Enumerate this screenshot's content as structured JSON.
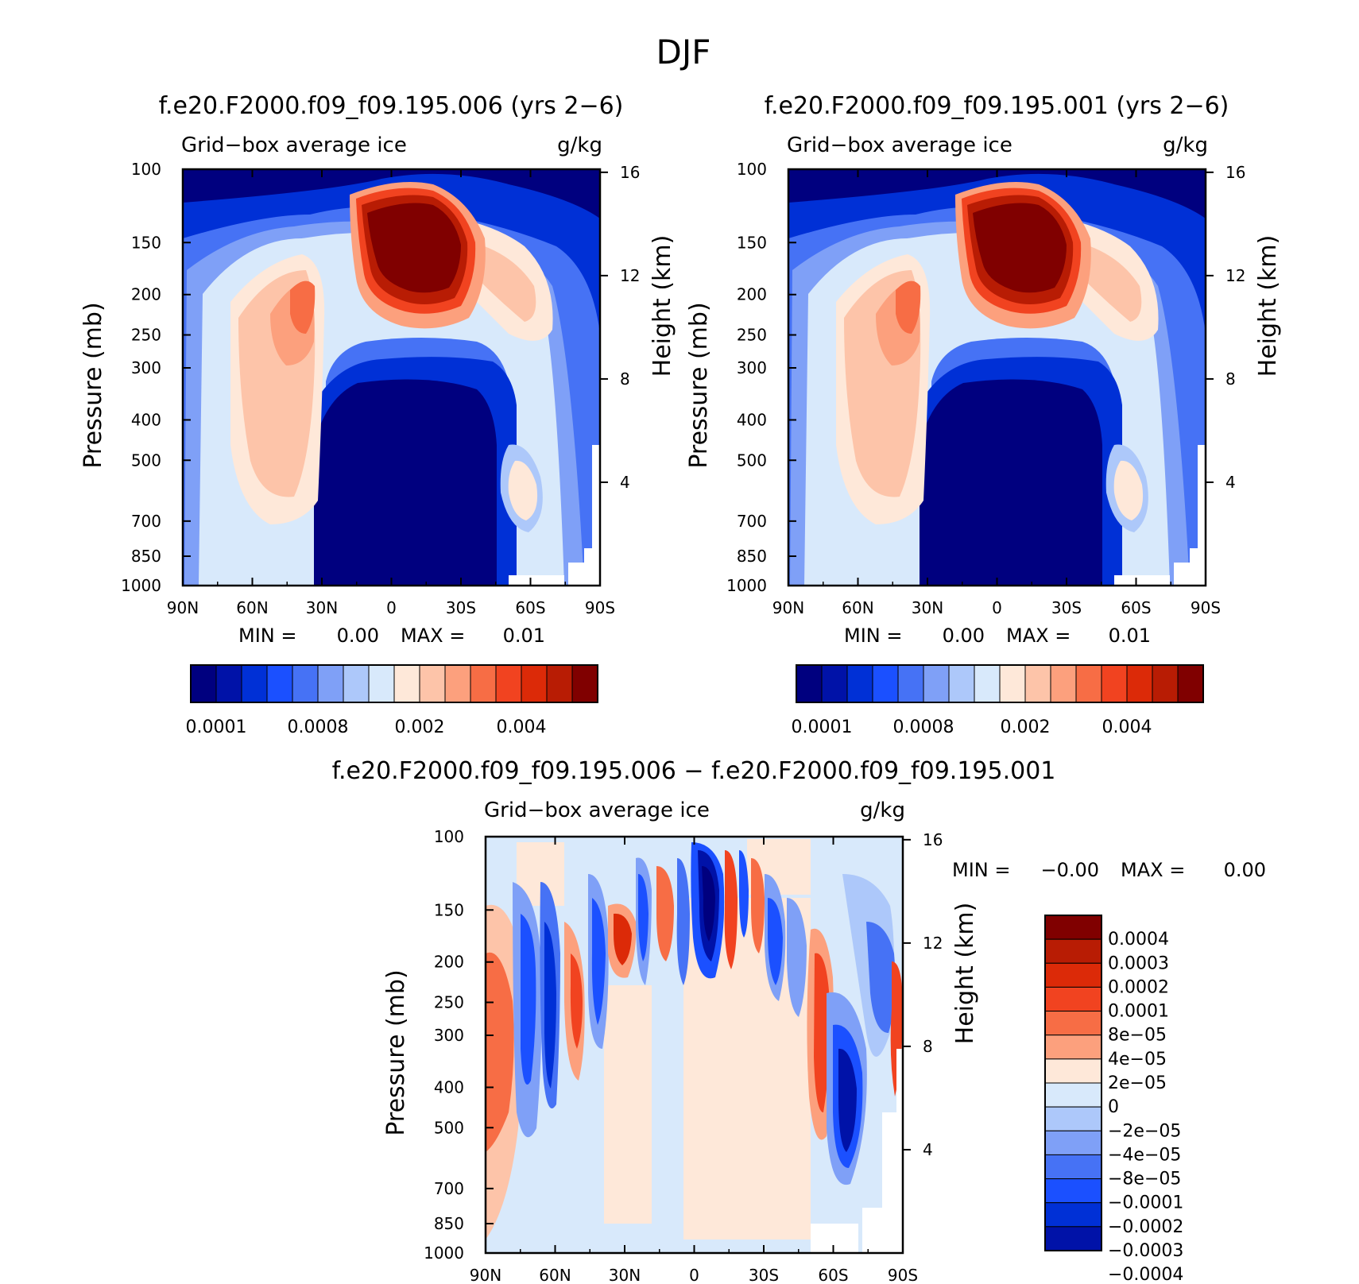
{
  "figure": {
    "title": "DJF"
  },
  "chart_data": [
    {
      "type": "heatmap",
      "title": "f.e20.F2000.f09_f09.195.006 (yrs 2−6)",
      "subtitle_left": "Grid−box average ice",
      "subtitle_right": "g/kg",
      "ylabel": "Pressure (mb)",
      "ylabel_right": "Height (km)",
      "x_ticks": [
        "90N",
        "60N",
        "30N",
        "0",
        "30S",
        "60S",
        "90S"
      ],
      "y_ticks": [
        "100",
        "150",
        "200",
        "250",
        "300",
        "400",
        "500",
        "700",
        "850",
        "1000"
      ],
      "y_right_ticks": [
        "16",
        "12",
        "8",
        "4"
      ],
      "x_range": [
        90,
        -90
      ],
      "y_range": [
        100,
        1000
      ],
      "y_scale": "log",
      "min_label": "MIN =",
      "min_value": "0.00",
      "max_label": "MAX =",
      "max_value": "0.01",
      "colorbar_labels": [
        "0.0001",
        "0.0008",
        "0.002",
        "0.004"
      ],
      "colorbar_colors": [
        "#00007f",
        "#0012a8",
        "#0030d6",
        "#1b50ff",
        "#4672f5",
        "#7fa0f7",
        "#adc8fa",
        "#d8e9fb",
        "#fee8d9",
        "#fdc4a9",
        "#fca07d",
        "#f76d45",
        "#f14320",
        "#dc2a08",
        "#b81c04",
        "#800000"
      ]
    },
    {
      "type": "heatmap",
      "title": "f.e20.F2000.f09_f09.195.001 (yrs 2−6)",
      "subtitle_left": "Grid−box average ice",
      "subtitle_right": "g/kg",
      "ylabel": "Pressure (mb)",
      "ylabel_right": "Height (km)",
      "x_ticks": [
        "90N",
        "60N",
        "30N",
        "0",
        "30S",
        "60S",
        "90S"
      ],
      "y_ticks": [
        "100",
        "150",
        "200",
        "250",
        "300",
        "400",
        "500",
        "700",
        "850",
        "1000"
      ],
      "y_right_ticks": [
        "16",
        "12",
        "8",
        "4"
      ],
      "x_range": [
        90,
        -90
      ],
      "y_range": [
        100,
        1000
      ],
      "y_scale": "log",
      "min_label": "MIN =",
      "min_value": "0.00",
      "max_label": "MAX =",
      "max_value": "0.01",
      "colorbar_labels": [
        "0.0001",
        "0.0008",
        "0.002",
        "0.004"
      ],
      "colorbar_colors": [
        "#00007f",
        "#0012a8",
        "#0030d6",
        "#1b50ff",
        "#4672f5",
        "#7fa0f7",
        "#adc8fa",
        "#d8e9fb",
        "#fee8d9",
        "#fdc4a9",
        "#fca07d",
        "#f76d45",
        "#f14320",
        "#dc2a08",
        "#b81c04",
        "#800000"
      ]
    },
    {
      "type": "heatmap",
      "title": "f.e20.F2000.f09_f09.195.006 − f.e20.F2000.f09_f09.195.001",
      "subtitle_left": "Grid−box average ice",
      "subtitle_right": "g/kg",
      "ylabel": "Pressure (mb)",
      "ylabel_right": "Height (km)",
      "x_ticks": [
        "90N",
        "60N",
        "30N",
        "0",
        "30S",
        "60S",
        "90S"
      ],
      "y_ticks": [
        "100",
        "150",
        "200",
        "250",
        "300",
        "400",
        "500",
        "700",
        "850",
        "1000"
      ],
      "y_right_ticks": [
        "16",
        "12",
        "8",
        "4"
      ],
      "x_range": [
        90,
        -90
      ],
      "y_range": [
        100,
        1000
      ],
      "y_scale": "log",
      "min_label": "MIN =",
      "min_value": "−0.00",
      "max_label": "MAX =",
      "max_value": "0.00",
      "colorbar_labels": [
        "0.0004",
        "0.0003",
        "0.0002",
        "0.0001",
        "8e−05",
        "4e−05",
        "2e−05",
        "0",
        "−2e−05",
        "−4e−05",
        "−8e−05",
        "−0.0001",
        "−0.0002",
        "−0.0003",
        "−0.0004"
      ],
      "colorbar_colors": [
        "#800000",
        "#b81c04",
        "#dc2a08",
        "#f14320",
        "#f76d45",
        "#fca07d",
        "#fee8d9",
        "#d8e9fb",
        "#adc8fa",
        "#7fa0f7",
        "#4672f5",
        "#1b50ff",
        "#0030d6",
        "#0012a8"
      ]
    }
  ]
}
